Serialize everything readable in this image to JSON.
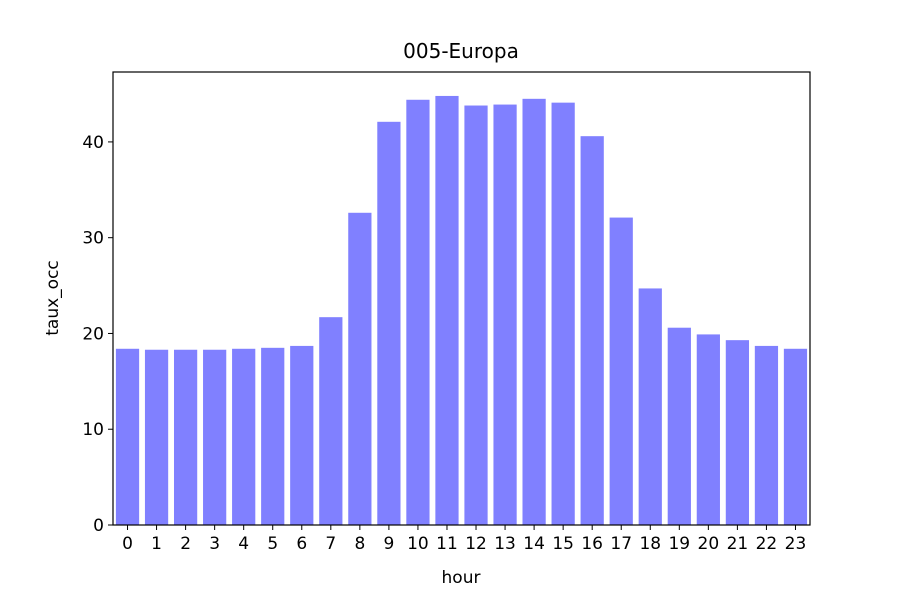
{
  "chart_data": {
    "type": "bar",
    "title": "005-Europa",
    "xlabel": "hour",
    "ylabel": "taux_occ",
    "categories": [
      "0",
      "1",
      "2",
      "3",
      "4",
      "5",
      "6",
      "7",
      "8",
      "9",
      "10",
      "11",
      "12",
      "13",
      "14",
      "15",
      "16",
      "17",
      "18",
      "19",
      "20",
      "21",
      "22",
      "23"
    ],
    "values": [
      18.4,
      18.3,
      18.3,
      18.3,
      18.4,
      18.5,
      18.7,
      21.7,
      32.6,
      42.1,
      44.4,
      44.8,
      43.8,
      43.9,
      44.5,
      44.1,
      40.6,
      32.1,
      24.7,
      20.6,
      19.9,
      19.3,
      18.7,
      18.4
    ],
    "ylim": [
      0,
      47.3
    ],
    "yticks": [
      0,
      10,
      20,
      30,
      40
    ],
    "bar_color": "#8080ff",
    "grid": false,
    "legend": "none"
  }
}
